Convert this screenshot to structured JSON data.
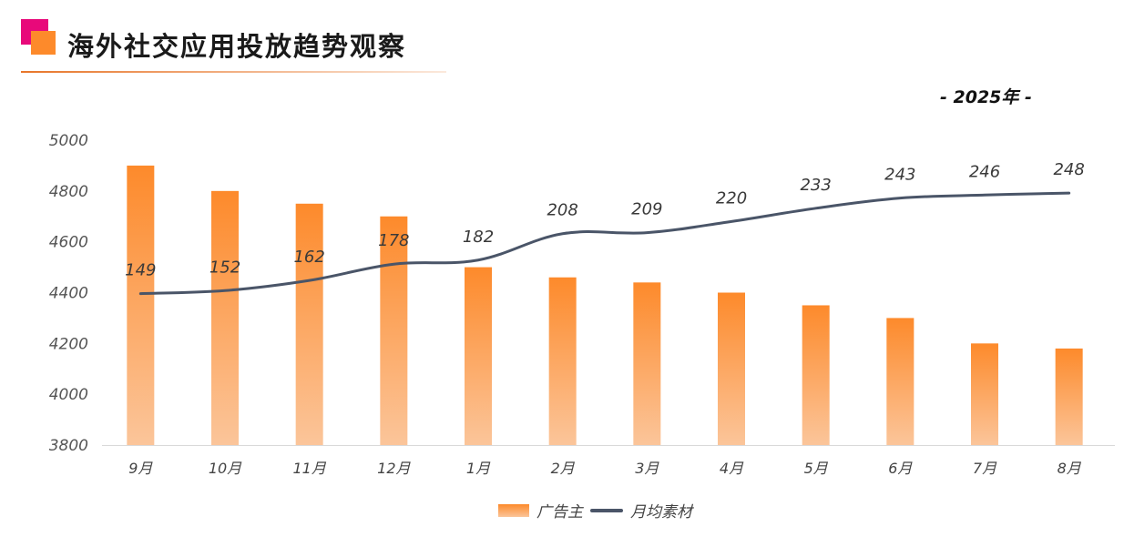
{
  "header": {
    "title": "海外社交应用投放趋势观察",
    "year": "- 2025年 -"
  },
  "colors": {
    "bar_top": "#fd8a2b",
    "bar_bottom": "#fbc59a",
    "line": "#4a5568",
    "accent": "#e8097a"
  },
  "chart_data": {
    "type": "bar+line",
    "categories": [
      "9月",
      "10月",
      "11月",
      "12月",
      "1月",
      "2月",
      "3月",
      "4月",
      "5月",
      "6月",
      "7月",
      "8月"
    ],
    "series": [
      {
        "name": "广告主",
        "type": "bar",
        "axis": "left",
        "values": [
          4900,
          4800,
          4750,
          4700,
          4500,
          4460,
          4440,
          4400,
          4350,
          4300,
          4200,
          4180
        ]
      },
      {
        "name": "月均素材",
        "type": "line",
        "axis": "right-hidden",
        "values": [
          149,
          152,
          162,
          178,
          182,
          208,
          209,
          220,
          233,
          243,
          246,
          248
        ]
      }
    ],
    "ylim": [
      3800,
      5000
    ],
    "yticks": [
      "5000",
      "4800",
      "4600",
      "4400",
      "4200",
      "4000",
      "3800"
    ],
    "y2lim": [
      0,
      300
    ],
    "grid": false,
    "legend": "bottom"
  }
}
